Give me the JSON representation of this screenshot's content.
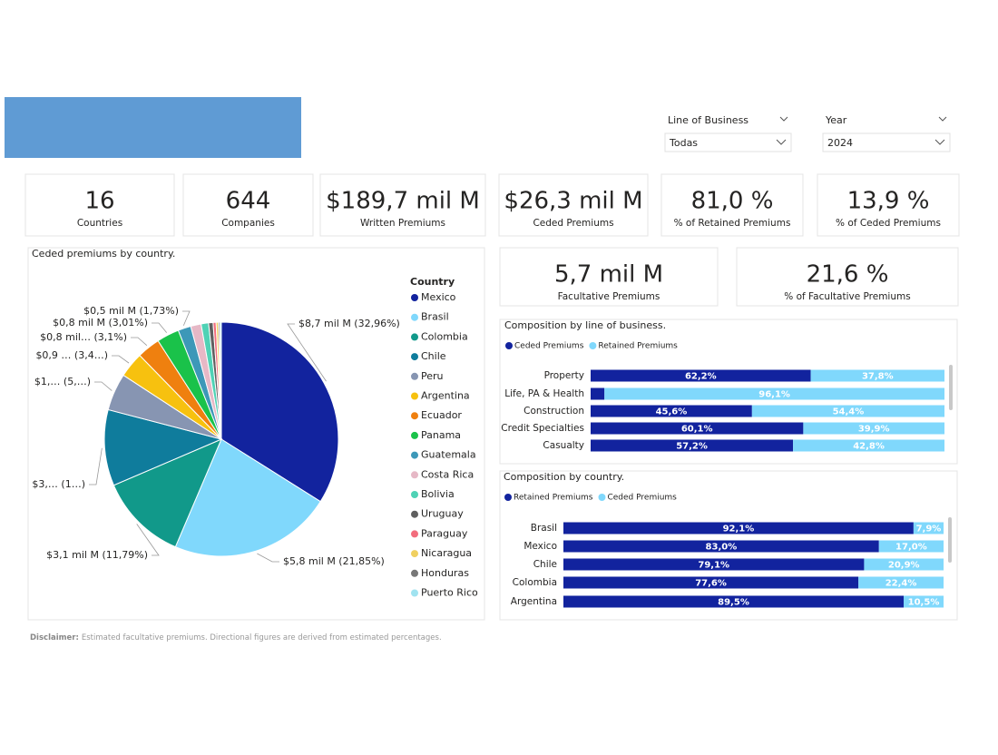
{
  "filters": [
    {
      "label": "Line of Business",
      "value": "Todas"
    },
    {
      "label": "Year",
      "value": "2024"
    }
  ],
  "kpis": [
    {
      "value": "16",
      "label": "Countries"
    },
    {
      "value": "644",
      "label": "Companies"
    },
    {
      "value": "$189,7 mil M",
      "label": "Written Premiums"
    },
    {
      "value": "$26,3 mil M",
      "label": "Ceded Premiums"
    },
    {
      "value": "81,0 %",
      "label": "% of Retained Premiums"
    },
    {
      "value": "13,9 %",
      "label": "% of Ceded Premiums"
    },
    {
      "value": "5,7 mil M",
      "label": "Facultative Premiums"
    },
    {
      "value": "21,6 %",
      "label": "% of Facultative Premiums"
    }
  ],
  "disclaimer": {
    "lead": "Disclaimer:",
    "text": "Estimated facultative premiums. Directional figures are derived from estimated percentages."
  },
  "chart_data": [
    {
      "type": "pie",
      "title": "Ceded premiums by country.",
      "legend_title": "Country",
      "categories": [
        "Mexico",
        "Brasil",
        "Colombia",
        "Chile",
        "Peru",
        "Argentina",
        "Ecuador",
        "Panama",
        "Guatemala",
        "Costa Rica",
        "Bolivia",
        "Uruguay",
        "Paraguay",
        "Nicaragua",
        "Honduras",
        "Puerto Rico"
      ],
      "values": [
        32.96,
        21.85,
        11.79,
        10.2,
        5.0,
        3.4,
        3.1,
        3.01,
        1.73,
        1.4,
        1.0,
        0.6,
        0.4,
        0.3,
        0.2,
        0.2
      ],
      "value_labels": [
        "$8,7 mil M (32,96%)",
        "$5,8 mil M (21,85%)",
        "$3,1 mil M (11,79%)",
        "$3,… (1…)",
        "$1,… (5,…)",
        "$0,9 … (3,4…)",
        "$0,8 mil… (3,1%)",
        "$0,8 mil M (3,01%)",
        "$0,5 mil M (1,73%)",
        null,
        null,
        null,
        null,
        null,
        null,
        null
      ],
      "colors": [
        "#12239e",
        "#80d8fc",
        "#11998a",
        "#0f7c9c",
        "#8795b2",
        "#f7c10f",
        "#ef800f",
        "#1ac24a",
        "#3d98b8",
        "#e6b8c6",
        "#4fd2b5",
        "#5f5f5f",
        "#f26d7d",
        "#f0d060",
        "#777777",
        "#a0e3f0"
      ]
    },
    {
      "type": "stacked-bar",
      "title": "Composition by line of business.",
      "categories": [
        "Property",
        "Life, PA & Health",
        "Construction",
        "Credit Specialties",
        "Casualty"
      ],
      "xlim": [
        0,
        100
      ],
      "series": [
        {
          "name": "Ceded Premiums",
          "color": "#12239e",
          "values": [
            62.2,
            3.9,
            45.6,
            60.1,
            57.2
          ],
          "value_labels": [
            "62,2%",
            null,
            "45,6%",
            "60,1%",
            "57,2%"
          ]
        },
        {
          "name": "Retained Premiums",
          "color": "#80d8fc",
          "values": [
            37.8,
            96.1,
            54.4,
            39.9,
            42.8
          ],
          "value_labels": [
            "37,8%",
            "96,1%",
            "54,4%",
            "39,9%",
            "42,8%"
          ]
        }
      ]
    },
    {
      "type": "stacked-bar",
      "title": "Composition by country.",
      "categories": [
        "Brasil",
        "Mexico",
        "Chile",
        "Colombia",
        "Argentina"
      ],
      "xlim": [
        0,
        100
      ],
      "series": [
        {
          "name": "Retained Premiums",
          "color": "#12239e",
          "values": [
            92.1,
            83.0,
            79.1,
            77.6,
            89.5
          ],
          "value_labels": [
            "92,1%",
            "83,0%",
            "79,1%",
            "77,6%",
            "89,5%"
          ]
        },
        {
          "name": "Ceded Premiums",
          "color": "#80d8fc",
          "values": [
            7.9,
            17.0,
            20.9,
            22.4,
            10.5
          ],
          "value_labels": [
            "7,9%",
            "17,0%",
            "20,9%",
            "22,4%",
            "10,5%"
          ]
        }
      ]
    }
  ]
}
